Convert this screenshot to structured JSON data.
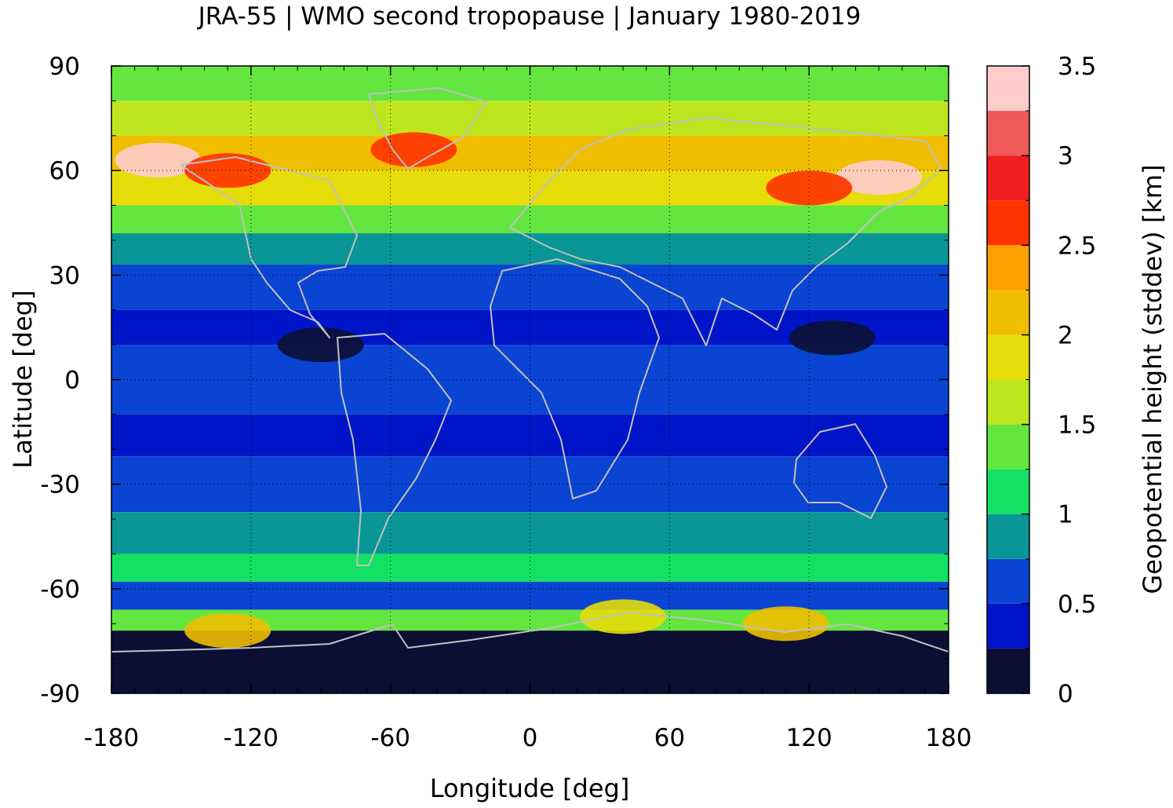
{
  "chart_data": {
    "type": "heatmap",
    "title": "JRA-55 | WMO second tropopause | January 1980-2019",
    "xlabel": "Longitude [deg]",
    "ylabel": "Latitude [deg]",
    "xlim": [
      -180,
      180
    ],
    "ylim": [
      -90,
      90
    ],
    "x_ticks": [
      -180,
      -120,
      -60,
      0,
      60,
      120,
      180
    ],
    "y_ticks": [
      90,
      60,
      30,
      0,
      -30,
      -60,
      -90
    ],
    "x_tick_labels": [
      "-180",
      "-120",
      "-60",
      "0",
      "60",
      "120",
      "180"
    ],
    "y_tick_labels": [
      "90",
      "60",
      "30",
      "0",
      "-30",
      "-60",
      "-90"
    ],
    "grid": true,
    "colorbar": {
      "label": "Geopotential height (stddev) [km]",
      "range": [
        0,
        3.5
      ],
      "ticks": [
        0,
        0.5,
        1,
        1.5,
        2,
        2.5,
        3,
        3.5
      ],
      "tick_labels": [
        "0",
        "0.5",
        "1",
        "1.5",
        "2",
        "2.5",
        "3",
        "3.5"
      ],
      "levels": [
        {
          "from": 0.0,
          "to": 0.25,
          "color": "#0b0f33"
        },
        {
          "from": 0.25,
          "to": 0.5,
          "color": "#0014c8"
        },
        {
          "from": 0.5,
          "to": 0.75,
          "color": "#0a44d2"
        },
        {
          "from": 0.75,
          "to": 1.0,
          "color": "#0a9696"
        },
        {
          "from": 1.0,
          "to": 1.25,
          "color": "#14e164"
        },
        {
          "from": 1.25,
          "to": 1.5,
          "color": "#64e641"
        },
        {
          "from": 1.5,
          "to": 1.75,
          "color": "#bee61e"
        },
        {
          "from": 1.75,
          "to": 2.0,
          "color": "#e6dc0a"
        },
        {
          "from": 2.0,
          "to": 2.25,
          "color": "#f0be00"
        },
        {
          "from": 2.25,
          "to": 2.5,
          "color": "#ffa000"
        },
        {
          "from": 2.5,
          "to": 2.75,
          "color": "#ff3200"
        },
        {
          "from": 2.75,
          "to": 3.0,
          "color": "#f01e1e"
        },
        {
          "from": 3.0,
          "to": 3.25,
          "color": "#f05a5a"
        },
        {
          "from": 3.25,
          "to": 3.5,
          "color": "#ffcccc"
        }
      ]
    },
    "zonal_profile": [
      {
        "lat_from": 90,
        "lat_to": 80,
        "value": 1.3
      },
      {
        "lat_from": 80,
        "lat_to": 70,
        "value": 1.6
      },
      {
        "lat_from": 70,
        "lat_to": 60,
        "value": 2.0
      },
      {
        "lat_from": 60,
        "lat_to": 50,
        "value": 1.8
      },
      {
        "lat_from": 50,
        "lat_to": 42,
        "value": 1.35
      },
      {
        "lat_from": 42,
        "lat_to": 33,
        "value": 0.9
      },
      {
        "lat_from": 33,
        "lat_to": 20,
        "value": 0.6
      },
      {
        "lat_from": 20,
        "lat_to": 10,
        "value": 0.3
      },
      {
        "lat_from": 10,
        "lat_to": -10,
        "value": 0.55
      },
      {
        "lat_from": -10,
        "lat_to": -22,
        "value": 0.3
      },
      {
        "lat_from": -22,
        "lat_to": -38,
        "value": 0.6
      },
      {
        "lat_from": -38,
        "lat_to": -50,
        "value": 0.9
      },
      {
        "lat_from": -50,
        "lat_to": -58,
        "value": 1.15
      },
      {
        "lat_from": -58,
        "lat_to": -66,
        "value": 0.7
      },
      {
        "lat_from": -66,
        "lat_to": -72,
        "value": 1.4
      },
      {
        "lat_from": -72,
        "lat_to": -90,
        "value": 0.1
      }
    ],
    "hotspots": [
      {
        "lon": -160,
        "lat": 63,
        "value": 3.3
      },
      {
        "lon": -130,
        "lat": 60,
        "value": 2.6
      },
      {
        "lon": -50,
        "lat": 66,
        "value": 2.6
      },
      {
        "lon": 150,
        "lat": 58,
        "value": 3.3
      },
      {
        "lon": 120,
        "lat": 55,
        "value": 2.6
      },
      {
        "lon": 40,
        "lat": -68,
        "value": 1.9
      },
      {
        "lon": 110,
        "lat": -70,
        "value": 2.1
      },
      {
        "lon": -130,
        "lat": -72,
        "value": 2.1
      },
      {
        "lon": -90,
        "lat": 10,
        "value": 0.1
      },
      {
        "lon": 130,
        "lat": 12,
        "value": 0.1
      }
    ]
  }
}
